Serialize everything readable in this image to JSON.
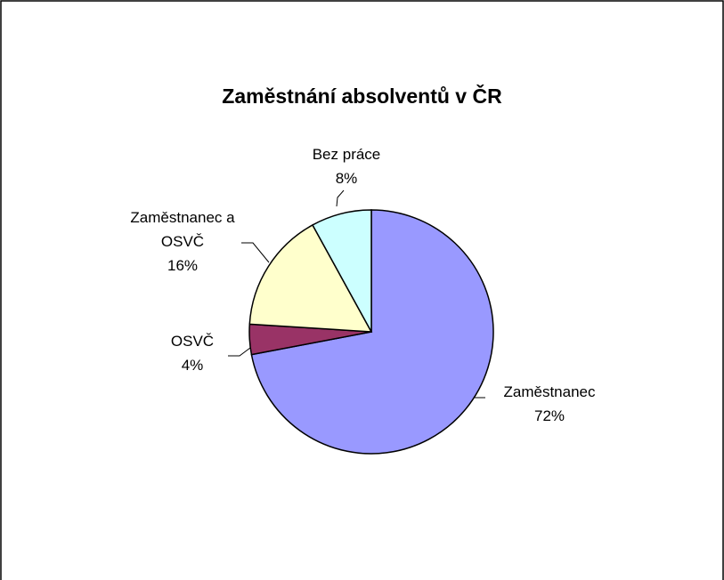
{
  "chart_data": {
    "type": "pie",
    "title": "Zaměstnání absolventů v ČR",
    "categories": [
      "Zaměstnanec",
      "OSVČ",
      "Zaměstnanec a OSVČ",
      "Bez práce"
    ],
    "values": [
      72,
      4,
      16,
      8
    ],
    "value_labels": [
      "72%",
      "4%",
      "16%",
      "8%"
    ],
    "colors": [
      "#9999ff",
      "#993366",
      "#ffffcc",
      "#ccffff"
    ]
  }
}
